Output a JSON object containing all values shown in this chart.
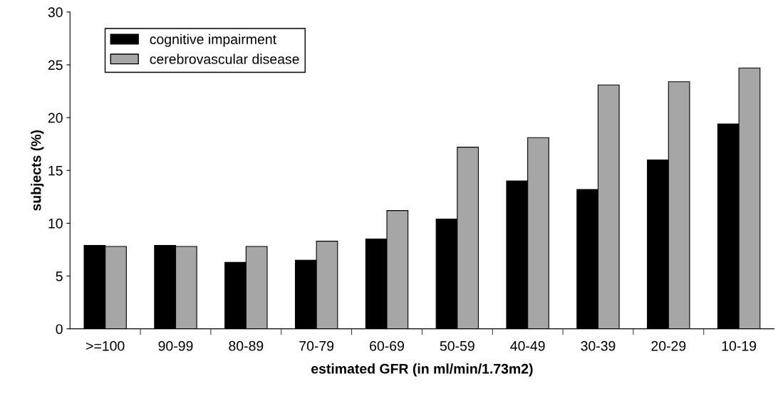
{
  "chart_data": {
    "type": "bar",
    "xlabel": "estimated GFR (in ml/min/1.73m2)",
    "ylabel": "subjects (%)",
    "categories": [
      ">=100",
      "90-99",
      "80-89",
      "70-79",
      "60-69",
      "50-59",
      "40-49",
      "30-39",
      "20-29",
      "10-19"
    ],
    "series": [
      {
        "name": "cognitive impairment",
        "color": "#000000",
        "values": [
          7.9,
          7.9,
          6.3,
          6.5,
          8.5,
          10.4,
          14.0,
          13.2,
          16.0,
          19.4
        ]
      },
      {
        "name": "cerebrovascular disease",
        "color": "#a6a6a6",
        "values": [
          7.8,
          7.8,
          7.8,
          8.3,
          11.2,
          17.2,
          18.1,
          23.1,
          23.4,
          24.7
        ]
      }
    ],
    "ylim": [
      0,
      30
    ],
    "yticks": [
      0,
      5,
      10,
      15,
      20,
      25,
      30
    ],
    "grid": false,
    "legend": "top left"
  }
}
